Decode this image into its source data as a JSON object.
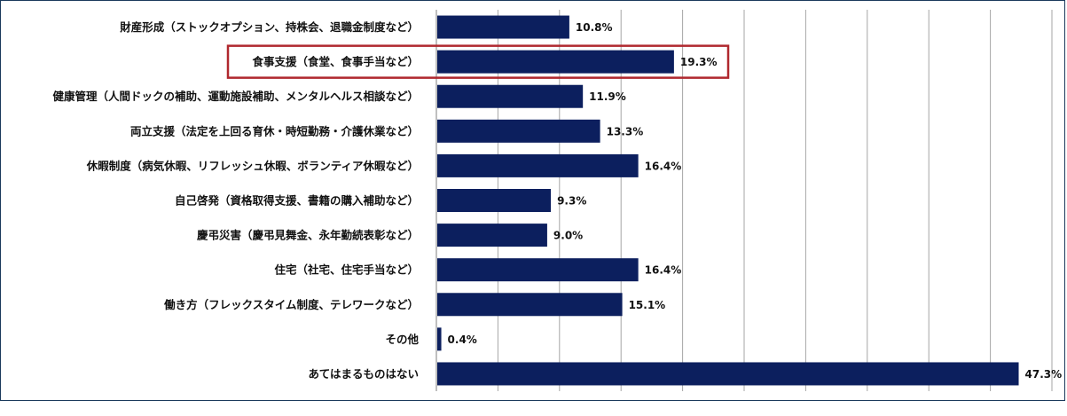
{
  "chart_data": {
    "type": "bar",
    "orientation": "horizontal",
    "categories": [
      "財産形成（ストックオプション、持株会、退職金制度など）",
      "食事支援（食堂、食事手当など）",
      "健康管理（人間ドックの補助、運動施設補助、メンタルヘルス相談など）",
      "両立支援（法定を上回る育休・時短勤務・介護休業など）",
      "休暇制度（病気休暇、リフレッシュ休暇、ボランティア休暇など）",
      "自己啓発（資格取得支援、書籍の購入補助など）",
      "慶弔災害（慶弔見舞金、永年勤続表彰など）",
      "住宅（社宅、住宅手当など）",
      "働き方（フレックスタイム制度、テレワークなど）",
      "その他",
      "あてはまるものはない"
    ],
    "values": [
      10.8,
      19.3,
      11.9,
      13.3,
      16.4,
      9.3,
      9.0,
      16.4,
      15.1,
      0.4,
      47.3
    ],
    "value_labels": [
      "10.8%",
      "19.3%",
      "11.9%",
      "13.3%",
      "16.4%",
      "9.3%",
      "9.0%",
      "16.4%",
      "15.1%",
      "0.4%",
      "47.3%"
    ],
    "xlim": [
      0,
      50
    ],
    "grid": true,
    "highlighted_category_index": 1,
    "bar_color": "#0c1f5e",
    "highlight_color": "#b0282e",
    "grid_color": "#a6a6a6"
  }
}
